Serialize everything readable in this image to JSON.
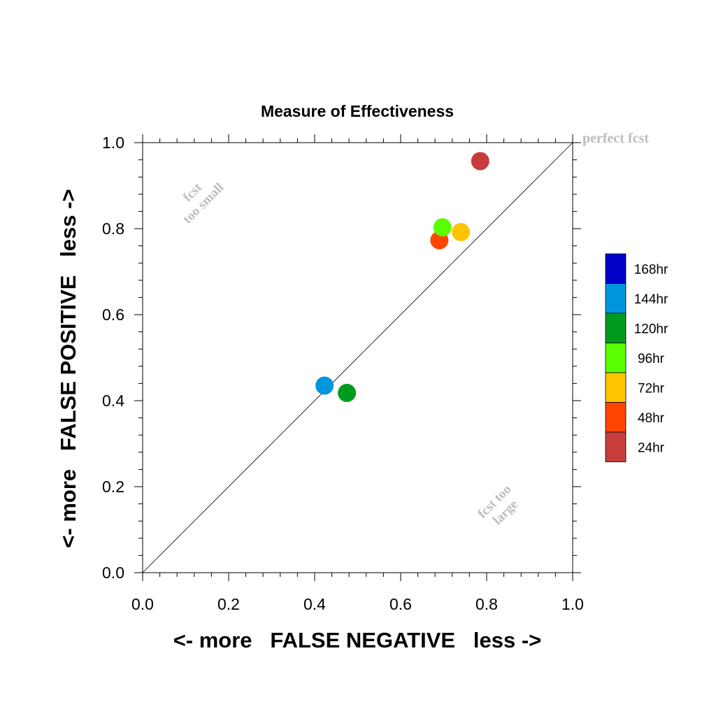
{
  "chart_data": {
    "type": "scatter",
    "title": "Measure of Effectiveness",
    "xlabel": "<- more   FALSE NEGATIVE   less ->",
    "ylabel": "<- more   FALSE POSITIVE   less ->",
    "xlim": [
      0.0,
      1.0
    ],
    "ylim": [
      0.0,
      1.0
    ],
    "xticks": [
      "0.0",
      "0.2",
      "0.4",
      "0.6",
      "0.8",
      "1.0"
    ],
    "yticks": [
      "0.0",
      "0.2",
      "0.4",
      "0.6",
      "0.8",
      "1.0"
    ],
    "grid": false,
    "diagonal_line": true,
    "annotations": {
      "perfect": "perfect fcst",
      "small_line1": "fcst",
      "small_line2": "too small",
      "large_line1": "fcst too",
      "large_line2": "large"
    },
    "legend": {
      "placement": "right",
      "entries": [
        {
          "label": "168hr",
          "color": "#0000c8"
        },
        {
          "label": "144hr",
          "color": "#0096dc"
        },
        {
          "label": "120hr",
          "color": "#009b1e"
        },
        {
          "label": "96hr",
          "color": "#5aff00"
        },
        {
          "label": "72hr",
          "color": "#ffc300"
        },
        {
          "label": "48hr",
          "color": "#ff4600"
        },
        {
          "label": "24hr",
          "color": "#c83c3c"
        }
      ]
    },
    "points": [
      {
        "series": "24hr",
        "x": 0.785,
        "y": 0.957
      },
      {
        "series": "48hr",
        "x": 0.69,
        "y": 0.773
      },
      {
        "series": "72hr",
        "x": 0.74,
        "y": 0.792
      },
      {
        "series": "96hr",
        "x": 0.697,
        "y": 0.803
      },
      {
        "series": "120hr",
        "x": 0.475,
        "y": 0.418
      },
      {
        "series": "144hr",
        "x": 0.423,
        "y": 0.435
      }
    ]
  }
}
